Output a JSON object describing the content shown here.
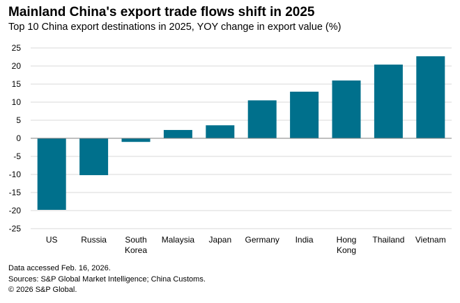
{
  "chart_data": {
    "type": "bar",
    "title": "Mainland China's export trade flows shift in 2025",
    "subtitle": "Top 10 China export destinations in 2025, YOY change in export value (%)",
    "categories": [
      [
        "US"
      ],
      [
        "Russia"
      ],
      [
        "South",
        "Korea"
      ],
      [
        "Malaysia"
      ],
      [
        "Japan"
      ],
      [
        "Germany"
      ],
      [
        "India"
      ],
      [
        "Hong",
        "Kong"
      ],
      [
        "Thailand"
      ],
      [
        "Vietnam"
      ]
    ],
    "values": [
      -19.8,
      -10.2,
      -1.0,
      2.3,
      3.6,
      10.5,
      12.9,
      16.0,
      20.4,
      22.7
    ],
    "ylim": [
      -25,
      25
    ],
    "yticks": [
      25,
      20,
      15,
      10,
      5,
      0,
      -5,
      -10,
      -15,
      -20,
      -25
    ],
    "xlabel": "",
    "ylabel": "",
    "grid": true,
    "bar_color": "#00708c",
    "grid_color": "#d9d9d9",
    "zero_line_color": "#7f7f7f"
  },
  "footnotes": {
    "accessed": "Data accessed Feb. 16, 2026.",
    "sources": "Sources: S&P Global Market Intelligence; China Customs.",
    "copyright": "© 2026 S&P Global."
  }
}
